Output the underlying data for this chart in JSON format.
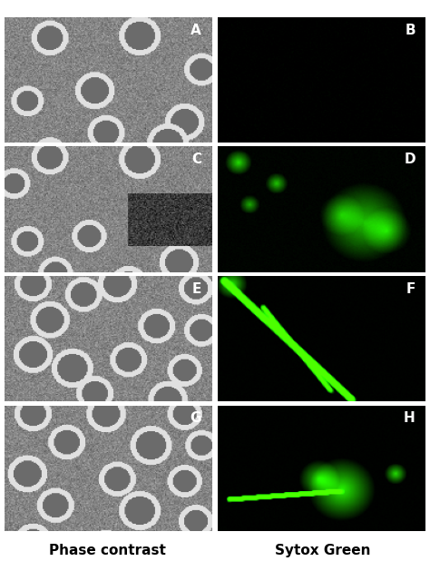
{
  "panels": [
    {
      "label": "A",
      "type": "phase",
      "row": 0,
      "col": 0
    },
    {
      "label": "B",
      "type": "sytox",
      "row": 0,
      "col": 1
    },
    {
      "label": "C",
      "type": "phase",
      "row": 1,
      "col": 0
    },
    {
      "label": "D",
      "type": "sytox",
      "row": 1,
      "col": 1
    },
    {
      "label": "E",
      "type": "phase",
      "row": 2,
      "col": 0
    },
    {
      "label": "F",
      "type": "sytox",
      "row": 2,
      "col": 1
    },
    {
      "label": "G",
      "type": "phase",
      "row": 3,
      "col": 0
    },
    {
      "label": "H",
      "type": "sytox",
      "row": 3,
      "col": 1
    }
  ],
  "col_labels": [
    "Phase contrast",
    "Sytox Green"
  ],
  "label_color": "white",
  "label_fontsize": 11,
  "label_fontweight": "bold",
  "col_label_fontsize": 11,
  "col_label_fontweight": "bold",
  "col_label_color": "black",
  "background_color": "white",
  "figsize": [
    4.74,
    6.29
  ],
  "dpi": 100
}
